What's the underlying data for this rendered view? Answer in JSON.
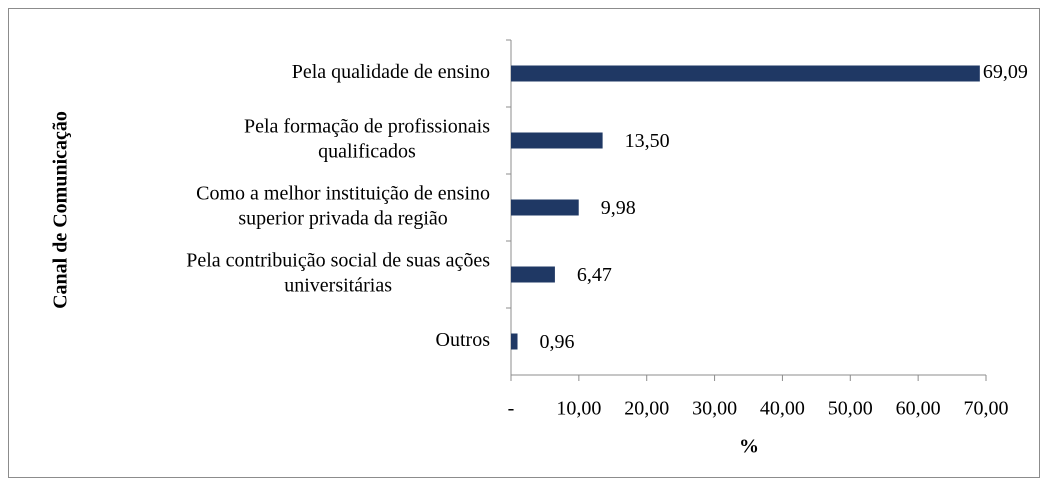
{
  "chart_data": {
    "type": "bar",
    "orientation": "horizontal",
    "xlabel": "%",
    "ylabel": "Canal de Comunicação",
    "categories": [
      [
        "Pela qualidade de ensino"
      ],
      [
        "Pela formação de profissionais",
        "qualificados"
      ],
      [
        "Como a melhor instituição de ensino",
        "superior privada da região"
      ],
      [
        "Pela contribuição social de suas ações",
        "universitárias"
      ],
      [
        "Outros"
      ]
    ],
    "values": [
      69.09,
      13.5,
      9.98,
      6.47,
      0.96
    ],
    "value_labels": [
      "69,09",
      "13,50",
      "9,98",
      "6,47",
      "0,96"
    ],
    "color": "#1f3864",
    "xlim": [
      0,
      70
    ],
    "xticks": [
      {
        "value": 0,
        "label": "-"
      },
      {
        "value": 10,
        "label": "10,00"
      },
      {
        "value": 20,
        "label": "20,00"
      },
      {
        "value": 30,
        "label": "30,00"
      },
      {
        "value": 40,
        "label": "40,00"
      },
      {
        "value": 50,
        "label": "50,00"
      },
      {
        "value": 60,
        "label": "60,00"
      },
      {
        "value": 70,
        "label": "70,00"
      }
    ]
  }
}
